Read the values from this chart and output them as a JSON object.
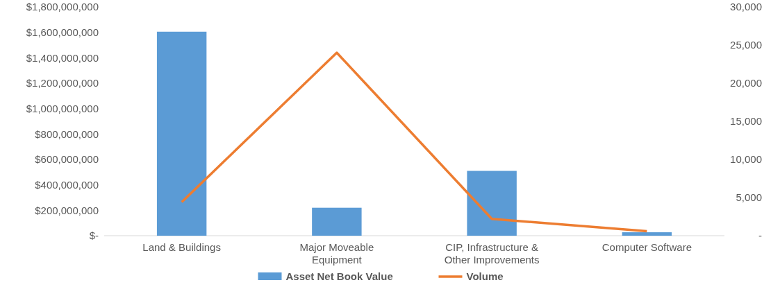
{
  "chart_data": {
    "type": "bar",
    "categories": [
      "Land & Buildings",
      "Major Moveable Equipment",
      "CIP, Infrastructure & Other Improvements",
      "Computer Software"
    ],
    "series": [
      {
        "name": "Asset Net Book Value",
        "color": "#5b9bd5",
        "values": [
          1605000000,
          220000000,
          510000000,
          27000000
        ]
      },
      {
        "name": "Volume",
        "type": "line",
        "axis": "y2",
        "color": "#ed7d31",
        "values": [
          4400,
          24000,
          2200,
          600
        ]
      }
    ],
    "ylim": [
      0,
      1800000000
    ],
    "yticks": [
      {
        "value": 0,
        "label": "$-"
      },
      {
        "value": 200000000,
        "label": "$200,000,000"
      },
      {
        "value": 400000000,
        "label": "$400,000,000"
      },
      {
        "value": 600000000,
        "label": "$600,000,000"
      },
      {
        "value": 800000000,
        "label": "$800,000,000"
      },
      {
        "value": 1000000000,
        "label": "$1,000,000,000"
      },
      {
        "value": 1200000000,
        "label": "$1,200,000,000"
      },
      {
        "value": 1400000000,
        "label": "$1,400,000,000"
      },
      {
        "value": 1600000000,
        "label": "$1,600,000,000"
      },
      {
        "value": 1800000000,
        "label": "$1,800,000,000"
      }
    ],
    "y2lim": [
      0,
      30000
    ],
    "y2ticks": [
      {
        "value": 0,
        "label": "-"
      },
      {
        "value": 5000,
        "label": "5,000"
      },
      {
        "value": 10000,
        "label": "10,000"
      },
      {
        "value": 15000,
        "label": "15,000"
      },
      {
        "value": 20000,
        "label": "20,000"
      },
      {
        "value": 25000,
        "label": "25,000"
      },
      {
        "value": 30000,
        "label": "30,000"
      }
    ],
    "legend": "bottom",
    "grid": false
  }
}
